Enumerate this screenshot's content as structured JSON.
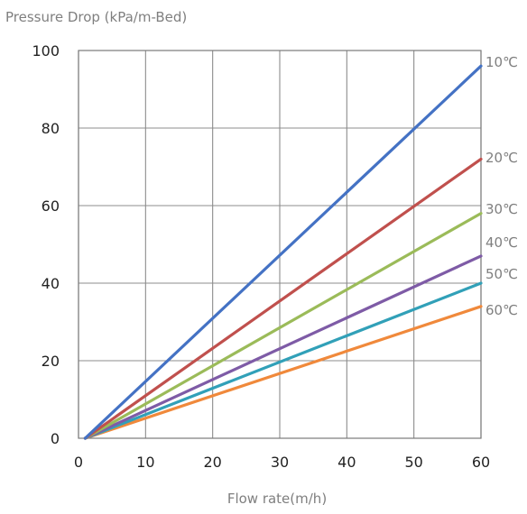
{
  "chart_data": {
    "type": "line",
    "ylabel": "Pressure Drop (kPa/m-Bed)",
    "xlabel": "Flow rate(m/h)",
    "xlim": [
      0,
      60
    ],
    "ylim": [
      0,
      100
    ],
    "x_ticks": [
      "0",
      "10",
      "20",
      "30",
      "40",
      "50",
      "60"
    ],
    "y_ticks": [
      "100",
      "80",
      "60",
      "40",
      "20",
      "0"
    ],
    "grid": true,
    "legend": "labels at right end of lines",
    "series": [
      {
        "name": "10℃",
        "color": "#4472C4",
        "x": [
          1,
          60
        ],
        "y": [
          0,
          96
        ]
      },
      {
        "name": "20℃",
        "color": "#C0504D",
        "x": [
          1,
          60
        ],
        "y": [
          0,
          72
        ]
      },
      {
        "name": "30℃",
        "color": "#9BBB59",
        "x": [
          1,
          60
        ],
        "y": [
          0,
          58
        ]
      },
      {
        "name": "40℃",
        "color": "#7E5BA6",
        "x": [
          1,
          60
        ],
        "y": [
          0,
          47
        ]
      },
      {
        "name": "50℃",
        "color": "#31A0B8",
        "x": [
          1,
          60
        ],
        "y": [
          0,
          40
        ]
      },
      {
        "name": "60℃",
        "color": "#F0893B",
        "x": [
          1,
          60
        ],
        "y": [
          0,
          34
        ]
      }
    ]
  }
}
